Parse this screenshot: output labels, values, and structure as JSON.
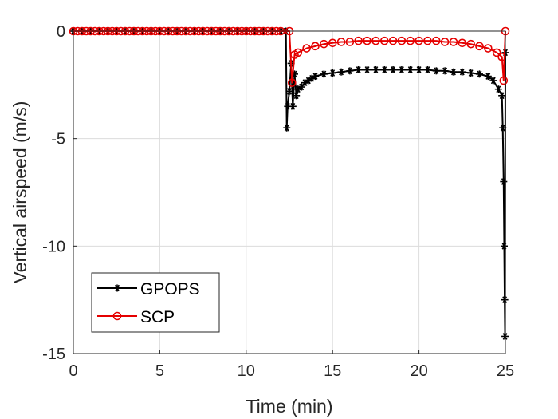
{
  "colors": {
    "background": "#ffffff",
    "axes": "#262626",
    "grid": "#dcdcdc",
    "gpops": "#000000",
    "scp": "#e50000"
  },
  "chart_data": {
    "type": "line",
    "title": "",
    "xlabel": "Time (min)",
    "ylabel": "Vertical airspeed (m/s)",
    "xlim": [
      0,
      25
    ],
    "ylim": [
      -15,
      0
    ],
    "xticks": [
      0,
      5,
      10,
      15,
      20,
      25
    ],
    "yticks": [
      0,
      -5,
      -10,
      -15
    ],
    "grid": true,
    "legend_position": "bottom-left",
    "series": [
      {
        "name": "GPOPS",
        "color": "#000000",
        "marker": "asterisk",
        "x": [
          0,
          0.5,
          1,
          1.5,
          2,
          2.5,
          3,
          3.5,
          4,
          4.5,
          5,
          5.5,
          6,
          6.5,
          7,
          7.5,
          8,
          8.5,
          9,
          9.5,
          10,
          10.5,
          11,
          11.5,
          12,
          12.3,
          12.35,
          12.4,
          12.5,
          12.6,
          12.7,
          12.8,
          12.9,
          13,
          13.2,
          13.4,
          13.6,
          13.8,
          14,
          14.5,
          15,
          15.5,
          16,
          16.5,
          17,
          17.5,
          18,
          18.5,
          19,
          19.5,
          20,
          20.5,
          21,
          21.5,
          22,
          22.5,
          23,
          23.5,
          24,
          24.3,
          24.6,
          24.8,
          24.85,
          24.9,
          24.93,
          24.96,
          24.98,
          25
        ],
        "y": [
          0,
          0,
          0,
          0,
          0,
          0,
          0,
          0,
          0,
          0,
          0,
          0,
          0,
          0,
          0,
          0,
          0,
          0,
          0,
          0,
          0,
          0,
          0,
          0,
          0,
          0,
          -4.5,
          -3.5,
          -2.8,
          -1.5,
          -3.5,
          -2.0,
          -3.0,
          -2.7,
          -2.6,
          -2.4,
          -2.3,
          -2.2,
          -2.1,
          -2.0,
          -1.95,
          -1.9,
          -1.85,
          -1.8,
          -1.8,
          -1.8,
          -1.8,
          -1.8,
          -1.8,
          -1.8,
          -1.8,
          -1.8,
          -1.85,
          -1.85,
          -1.9,
          -1.9,
          -1.95,
          -2.0,
          -2.1,
          -2.3,
          -2.7,
          -3.0,
          -4.5,
          -7.0,
          -10.0,
          -12.5,
          -14.2,
          -1.0
        ]
      },
      {
        "name": "SCP",
        "color": "#e50000",
        "marker": "circle",
        "x": [
          0,
          0.25,
          0.5,
          0.75,
          1,
          1.25,
          1.5,
          1.75,
          2,
          2.25,
          2.5,
          2.75,
          3,
          3.25,
          3.5,
          3.75,
          4,
          4.25,
          4.5,
          4.75,
          5,
          5.25,
          5.5,
          5.75,
          6,
          6.25,
          6.5,
          6.75,
          7,
          7.25,
          7.5,
          7.75,
          8,
          8.25,
          8.5,
          8.75,
          9,
          9.25,
          9.5,
          9.75,
          10,
          10.25,
          10.5,
          10.75,
          11,
          11.25,
          11.5,
          11.75,
          12,
          12.5,
          12.65,
          12.8,
          13,
          13.5,
          14,
          14.5,
          15,
          15.5,
          16,
          16.5,
          17,
          17.5,
          18,
          18.5,
          19,
          19.5,
          20,
          20.5,
          21,
          21.5,
          22,
          22.5,
          23,
          23.5,
          24,
          24.5,
          24.8,
          24.9,
          25
        ],
        "y": [
          0,
          0,
          0,
          0,
          0,
          0,
          0,
          0,
          0,
          0,
          0,
          0,
          0,
          0,
          0,
          0,
          0,
          0,
          0,
          0,
          0,
          0,
          0,
          0,
          0,
          0,
          0,
          0,
          0,
          0,
          0,
          0,
          0,
          0,
          0,
          0,
          0,
          0,
          0,
          0,
          0,
          0,
          0,
          0,
          0,
          0,
          0,
          0,
          0,
          0,
          -2.4,
          -1.1,
          -1.0,
          -0.8,
          -0.7,
          -0.6,
          -0.55,
          -0.5,
          -0.5,
          -0.45,
          -0.45,
          -0.45,
          -0.45,
          -0.45,
          -0.45,
          -0.45,
          -0.45,
          -0.45,
          -0.45,
          -0.5,
          -0.5,
          -0.55,
          -0.6,
          -0.7,
          -0.8,
          -1.0,
          -1.2,
          -2.3,
          0
        ]
      }
    ]
  }
}
